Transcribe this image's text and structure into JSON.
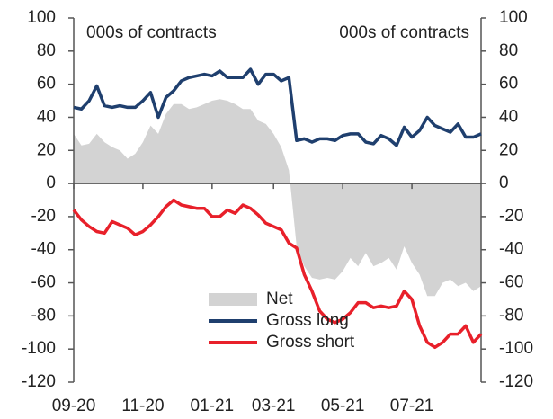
{
  "chart_data": {
    "type": "area-line",
    "annotations": [
      "000s of contracts",
      "000s of contracts"
    ],
    "categories": [
      "09-20",
      null,
      null,
      null,
      null,
      null,
      null,
      null,
      null,
      "11-20",
      null,
      null,
      null,
      null,
      null,
      null,
      null,
      null,
      "01-21",
      null,
      null,
      null,
      null,
      null,
      null,
      null,
      "03-21",
      null,
      null,
      null,
      null,
      null,
      null,
      null,
      null,
      "05-21",
      null,
      null,
      null,
      null,
      null,
      null,
      null,
      null,
      "07-21",
      null,
      null,
      null,
      null,
      null,
      null,
      null,
      null,
      null
    ],
    "series": [
      {
        "name": "Net",
        "kind": "area",
        "color": "#d3d3d3",
        "values": [
          30,
          23,
          24,
          30,
          25,
          22,
          20,
          15,
          18,
          25,
          35,
          30,
          42,
          48,
          48,
          45,
          46,
          48,
          50,
          51,
          50,
          48,
          45,
          45,
          38,
          36,
          30,
          22,
          8,
          -38,
          -50,
          -57,
          -58,
          -57,
          -58,
          -53,
          -45,
          -50,
          -42,
          -50,
          -48,
          -45,
          -52,
          -38,
          -48,
          -55,
          -68,
          -68,
          -60,
          -58,
          -62,
          -60,
          -65,
          -62
        ]
      },
      {
        "name": "Gross long",
        "kind": "line",
        "color": "#1f3f6e",
        "values": [
          46,
          45,
          50,
          59,
          47,
          46,
          47,
          46,
          46,
          50,
          55,
          40,
          52,
          56,
          62,
          64,
          65,
          66,
          65,
          68,
          64,
          64,
          64,
          69,
          60,
          66,
          66,
          62,
          64,
          26,
          27,
          25,
          27,
          27,
          26,
          29,
          30,
          30,
          25,
          24,
          29,
          27,
          23,
          34,
          28,
          32,
          40,
          35,
          33,
          31,
          36,
          28,
          28,
          30
        ]
      },
      {
        "name": "Gross short",
        "kind": "line",
        "color": "#e8202a",
        "values": [
          -16,
          -22,
          -26,
          -29,
          -30,
          -23,
          -25,
          -27,
          -31,
          -29,
          -25,
          -20,
          -14,
          -10,
          -13,
          -14,
          -15,
          -15,
          -20,
          -20,
          -16,
          -18,
          -13,
          -15,
          -19,
          -24,
          -26,
          -28,
          -36,
          -39,
          -55,
          -65,
          -77,
          -82,
          -84,
          -82,
          -78,
          -72,
          -72,
          -75,
          -74,
          -75,
          -74,
          -65,
          -70,
          -86,
          -96,
          -99,
          -96,
          -91,
          -91,
          -86,
          -96,
          -91
        ]
      }
    ],
    "ylim": [
      -120,
      100
    ],
    "yticks": [
      -120,
      -100,
      -80,
      -60,
      -40,
      -20,
      0,
      20,
      40,
      60,
      80,
      100
    ],
    "y2lim": [
      -120,
      100
    ],
    "y2ticks": [
      -120,
      -100,
      -80,
      -60,
      -40,
      -20,
      0,
      20,
      40,
      60,
      80,
      100
    ],
    "legend": "lower center"
  }
}
